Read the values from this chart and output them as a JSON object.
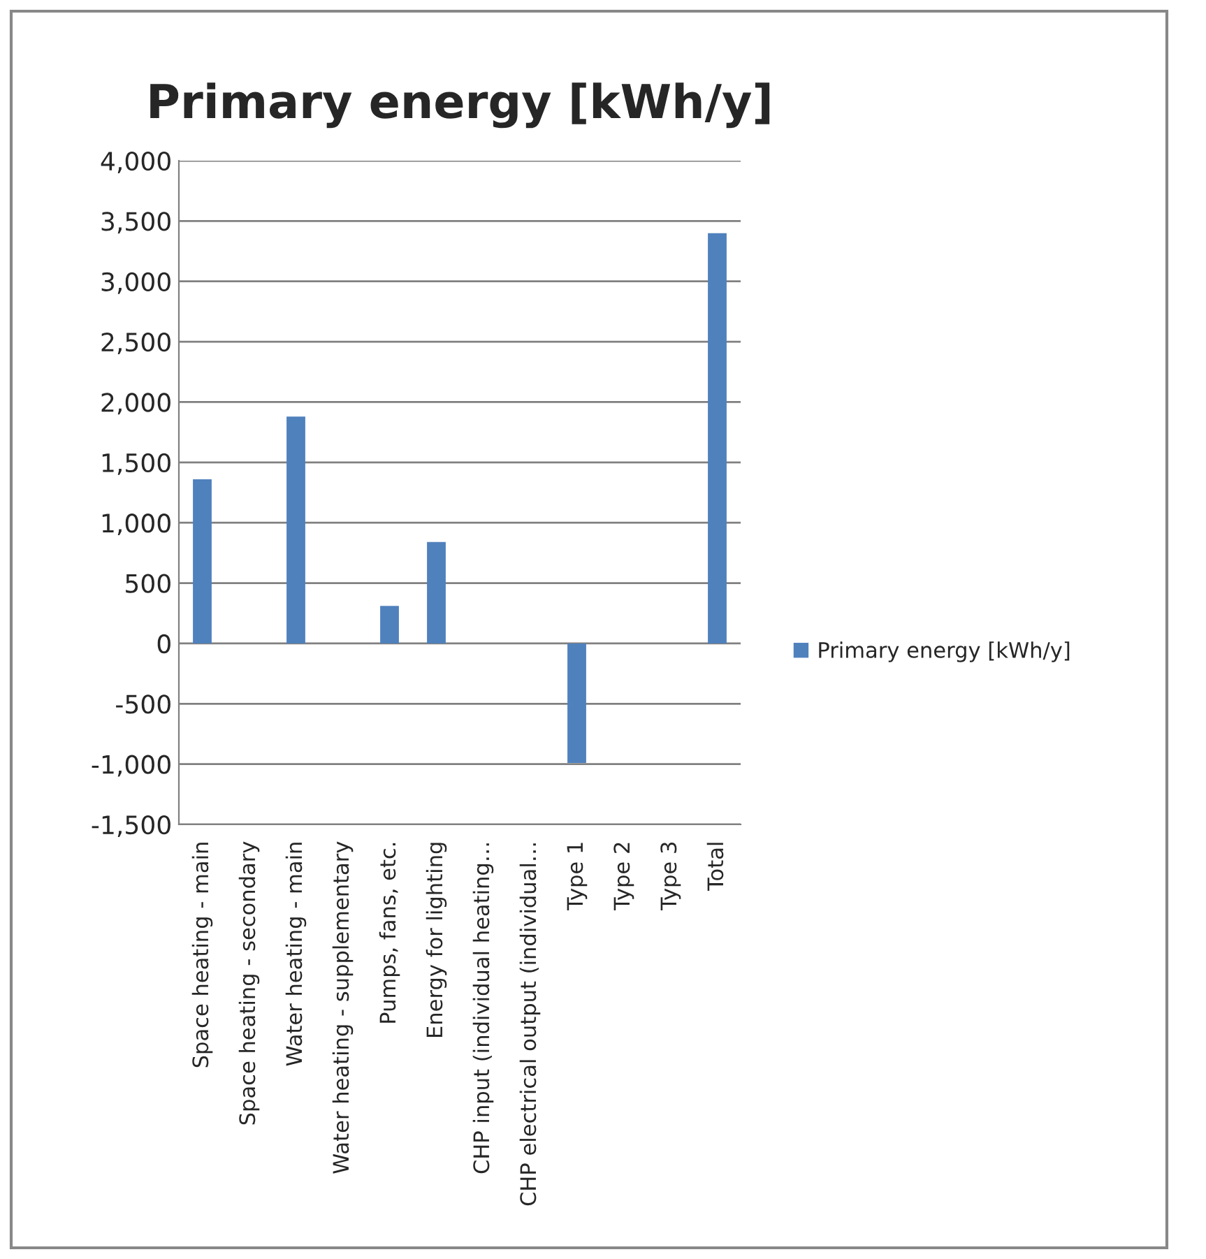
{
  "chart_data": {
    "type": "bar",
    "title": "Primary energy [kWh/y]",
    "categories": [
      "Space heating - main",
      "Space heating - secondary",
      "Water heating - main",
      "Water heating - supplementary",
      "Pumps, fans, etc.",
      "Energy for lighting",
      "CHP input (individual heating…",
      "CHP electrical output (individual…",
      "Type 1",
      "Type 2",
      "Type 3",
      "Total"
    ],
    "series": [
      {
        "name": "Primary energy [kWh/y]",
        "color": "#4f81bd",
        "values": [
          1360,
          null,
          1880,
          null,
          310,
          840,
          null,
          null,
          -990,
          null,
          null,
          3400
        ]
      }
    ],
    "ylim": [
      -1500,
      4000
    ],
    "yticks": [
      {
        "value": -1500,
        "label": "-1,500"
      },
      {
        "value": -1000,
        "label": "-1,000"
      },
      {
        "value": -500,
        "label": "-500"
      },
      0,
      {
        "value": 500,
        "label": "500"
      },
      {
        "value": 1000,
        "label": "1,000"
      },
      {
        "value": 1500,
        "label": "1,500"
      },
      {
        "value": 2000,
        "label": "2,000"
      },
      {
        "value": 2500,
        "label": "2,500"
      },
      {
        "value": 3000,
        "label": "3,000"
      },
      {
        "value": 3500,
        "label": "3,500"
      },
      {
        "value": 4000,
        "label": "4,000"
      }
    ],
    "grid": "y",
    "legend": "right"
  }
}
